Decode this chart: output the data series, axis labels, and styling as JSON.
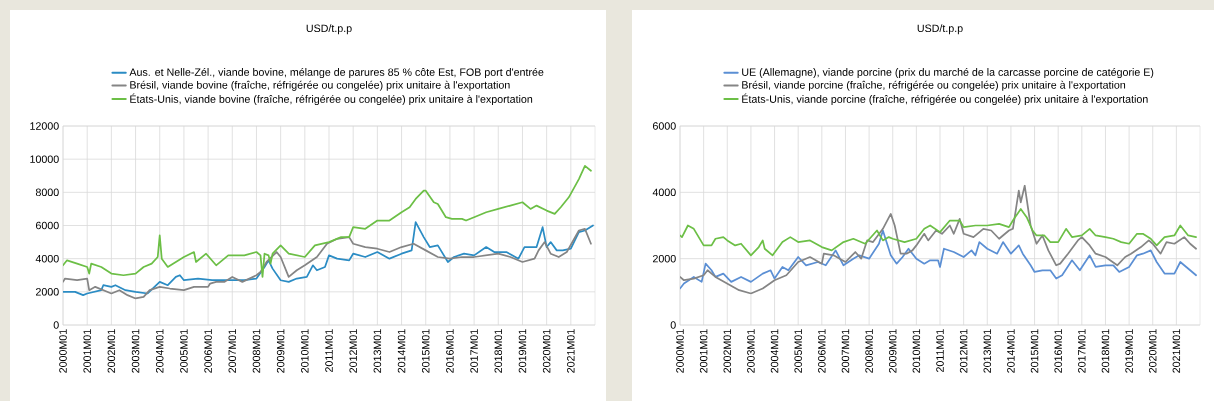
{
  "chart_data": [
    {
      "type": "line",
      "title": "USD/t.p.p",
      "legend": "top",
      "grid": true,
      "xlim": [
        "2000-01",
        "2022-01"
      ],
      "ylim": [
        0,
        12000
      ],
      "xticks": [
        {
          "value": "2000-01",
          "label": "2000M01"
        },
        {
          "value": "2001-01",
          "label": "2001M01"
        },
        {
          "value": "2002-01",
          "label": "2002M01"
        },
        {
          "value": "2003-01",
          "label": "2003M01"
        },
        {
          "value": "2004-01",
          "label": "2004M01"
        },
        {
          "value": "2005-01",
          "label": "2005M01"
        },
        {
          "value": "2006-01",
          "label": "2006M01"
        },
        {
          "value": "2007-01",
          "label": "2007M01"
        },
        {
          "value": "2008-01",
          "label": "2008M01"
        },
        {
          "value": "2009-01",
          "label": "2009M01"
        },
        {
          "value": "2010-01",
          "label": "2010M01"
        },
        {
          "value": "2011-01",
          "label": "2011M01"
        },
        {
          "value": "2012-01",
          "label": "2012M01"
        },
        {
          "value": "2013-01",
          "label": "2013M01"
        },
        {
          "value": "2014-01",
          "label": "2014M01"
        },
        {
          "value": "2015-01",
          "label": "2015M01"
        },
        {
          "value": "2016-01",
          "label": "2016M01"
        },
        {
          "value": "2017-01",
          "label": "2017M01"
        },
        {
          "value": "2018-01",
          "label": "2018M01"
        },
        {
          "value": "2019-01",
          "label": "2019M01"
        },
        {
          "value": "2020-01",
          "label": "2020M01"
        },
        {
          "value": "2021-01",
          "label": "2021M01"
        }
      ],
      "yticks": [
        0,
        2000,
        4000,
        6000,
        8000,
        10000,
        12000
      ],
      "series": [
        {
          "name": "Aus. et Nelle-Zél., viande bovine, mélange de parures 85 % côte Est, FOB port d'entrée",
          "color": "#2b8cc4",
          "x": [
            "2000-01",
            "2000-07",
            "2000-11",
            "2001-01",
            "2001-08",
            "2001-09",
            "2002-01",
            "2002-03",
            "2002-08",
            "2003-01",
            "2003-07",
            "2004-01",
            "2004-05",
            "2004-09",
            "2004-11",
            "2005-01",
            "2005-08",
            "2006-03",
            "2007-01",
            "2007-07",
            "2008-01",
            "2008-05",
            "2008-07",
            "2008-09",
            "2009-01",
            "2009-05",
            "2009-09",
            "2010-02",
            "2010-05",
            "2010-07",
            "2010-11",
            "2011-01",
            "2011-05",
            "2011-11",
            "2012-01",
            "2012-07",
            "2013-01",
            "2013-07",
            "2014-01",
            "2014-06",
            "2014-08",
            "2014-12",
            "2015-03",
            "2015-07",
            "2015-12",
            "2016-03",
            "2016-08",
            "2017-01",
            "2017-07",
            "2017-11",
            "2018-05",
            "2018-11",
            "2019-02",
            "2019-08",
            "2019-11",
            "2020-01",
            "2020-03",
            "2020-06",
            "2020-09",
            "2021-01",
            "2021-05",
            "2021-08",
            "2021-12"
          ],
          "values": [
            2000,
            2000,
            1800,
            1900,
            2100,
            2400,
            2300,
            2400,
            2100,
            2000,
            1900,
            2600,
            2400,
            2900,
            3000,
            2700,
            2800,
            2700,
            2700,
            2700,
            2800,
            3500,
            3900,
            3400,
            2700,
            2600,
            2800,
            2900,
            3600,
            3300,
            3500,
            4200,
            4000,
            3900,
            4300,
            4100,
            4400,
            4000,
            4300,
            4500,
            6200,
            5300,
            4700,
            4800,
            3800,
            4100,
            4300,
            4200,
            4700,
            4400,
            4400,
            4000,
            4700,
            4700,
            5900,
            4700,
            5000,
            4500,
            4500,
            4600,
            5600,
            5700,
            6000
          ]
        },
        {
          "name": "Brésil, viande bovine (fraîche, réfrigérée ou congelée) prix unitaire à l'exportation",
          "color": "#858585",
          "x": [
            "2000-01",
            "2000-02",
            "2000-08",
            "2001-01",
            "2001-02",
            "2001-05",
            "2002-01",
            "2002-05",
            "2002-09",
            "2003-01",
            "2003-05",
            "2003-08",
            "2004-01",
            "2004-06",
            "2005-01",
            "2005-06",
            "2006-01",
            "2006-02",
            "2006-05",
            "2006-09",
            "2007-01",
            "2007-06",
            "2008-01",
            "2008-03",
            "2008-06",
            "2008-11",
            "2009-01",
            "2009-05",
            "2009-09",
            "2010-01",
            "2010-07",
            "2010-12",
            "2011-05",
            "2011-11",
            "2012-01",
            "2012-07",
            "2013-01",
            "2013-07",
            "2014-01",
            "2014-07",
            "2015-01",
            "2015-07",
            "2016-01",
            "2016-07",
            "2017-01",
            "2017-07",
            "2018-01",
            "2018-07",
            "2019-01",
            "2019-07",
            "2019-09",
            "2019-12",
            "2020-03",
            "2020-07",
            "2020-11",
            "2021-05",
            "2021-08",
            "2021-11"
          ],
          "values": [
            2600,
            2800,
            2700,
            2800,
            2100,
            2300,
            1900,
            2100,
            1800,
            1600,
            1700,
            2100,
            2300,
            2200,
            2100,
            2300,
            2300,
            2500,
            2600,
            2600,
            2900,
            2600,
            3000,
            3200,
            3800,
            4400,
            4100,
            2900,
            3300,
            3600,
            4100,
            4900,
            5200,
            5300,
            4900,
            4700,
            4600,
            4400,
            4700,
            4900,
            4500,
            4100,
            4000,
            4100,
            4100,
            4200,
            4300,
            4100,
            3800,
            4000,
            4500,
            5000,
            4300,
            4100,
            4400,
            5700,
            5800,
            4900
          ]
        },
        {
          "name": "États-Unis, viande bovine (fraîche, réfrigérée ou congelée) prix unitaire à l'exportation",
          "color": "#6cbf46",
          "x": [
            "2000-01",
            "2000-03",
            "2000-08",
            "2001-01",
            "2001-02",
            "2001-03",
            "2001-08",
            "2002-01",
            "2002-07",
            "2003-01",
            "2003-05",
            "2003-09",
            "2003-12",
            "2004-01",
            "2004-02",
            "2004-05",
            "2004-09",
            "2005-01",
            "2005-06",
            "2005-07",
            "2005-12",
            "2006-05",
            "2006-11",
            "2007-07",
            "2008-01",
            "2008-03",
            "2008-04",
            "2008-05",
            "2008-07",
            "2008-08",
            "2008-09",
            "2009-01",
            "2009-05",
            "2010-01",
            "2010-06",
            "2011-01",
            "2011-07",
            "2011-11",
            "2012-01",
            "2012-07",
            "2013-01",
            "2013-07",
            "2014-01",
            "2014-05",
            "2014-08",
            "2014-12",
            "2015-01",
            "2015-05",
            "2015-07",
            "2015-11",
            "2016-02",
            "2016-07",
            "2016-09",
            "2017-01",
            "2017-07",
            "2018-01",
            "2018-07",
            "2019-01",
            "2019-05",
            "2019-08",
            "2020-01",
            "2020-05",
            "2020-08",
            "2020-12",
            "2021-05",
            "2021-08",
            "2021-11"
          ],
          "values": [
            3600,
            3900,
            3700,
            3500,
            3100,
            3700,
            3500,
            3100,
            3000,
            3100,
            3500,
            3700,
            4100,
            5400,
            4000,
            3500,
            3800,
            4100,
            4400,
            3800,
            4300,
            3600,
            4200,
            4200,
            4400,
            4200,
            2900,
            4300,
            4200,
            3700,
            4300,
            4800,
            4300,
            4100,
            4800,
            5000,
            5300,
            5300,
            5900,
            5800,
            6300,
            6300,
            6800,
            7100,
            7600,
            8100,
            8100,
            7400,
            7300,
            6500,
            6400,
            6400,
            6300,
            6500,
            6800,
            7000,
            7200,
            7400,
            7000,
            7200,
            6900,
            6700,
            7100,
            7700,
            8800,
            9600,
            9300
          ]
        }
      ]
    },
    {
      "type": "line",
      "title": "USD/t.p.p",
      "legend": "top",
      "grid": true,
      "xlim": [
        "2000-01",
        "2022-01"
      ],
      "ylim": [
        0,
        6000
      ],
      "xticks": [
        {
          "value": "2000-01",
          "label": "2000M01"
        },
        {
          "value": "2001-01",
          "label": "2001M01"
        },
        {
          "value": "2002-01",
          "label": "2002M01"
        },
        {
          "value": "2003-01",
          "label": "2003M01"
        },
        {
          "value": "2004-01",
          "label": "2004M01"
        },
        {
          "value": "2005-01",
          "label": "2005M01"
        },
        {
          "value": "2006-01",
          "label": "2006M01"
        },
        {
          "value": "2007-01",
          "label": "2007M01"
        },
        {
          "value": "2008-01",
          "label": "2008M01"
        },
        {
          "value": "2009-01",
          "label": "2009M01"
        },
        {
          "value": "2010-01",
          "label": "2010M01"
        },
        {
          "value": "2011-01",
          "label": "2011M01"
        },
        {
          "value": "2012-01",
          "label": "2012M01"
        },
        {
          "value": "2013-01",
          "label": "2013M01"
        },
        {
          "value": "2014-01",
          "label": "2014M01"
        },
        {
          "value": "2015-01",
          "label": "2015M01"
        },
        {
          "value": "2016-01",
          "label": "2016M01"
        },
        {
          "value": "2017-01",
          "label": "2017M01"
        },
        {
          "value": "2018-01",
          "label": "2018M01"
        },
        {
          "value": "2019-01",
          "label": "2019M01"
        },
        {
          "value": "2020-01",
          "label": "2020M01"
        },
        {
          "value": "2021-01",
          "label": "2021M01"
        }
      ],
      "yticks": [
        0,
        2000,
        4000,
        6000
      ],
      "series": [
        {
          "name": "UE (Allemagne), viande porcine (prix du marché de la carcasse porcine de catégorie E)",
          "color": "#5b8fd4",
          "x": [
            "2000-01",
            "2000-03",
            "2000-08",
            "2000-12",
            "2001-02",
            "2001-05",
            "2001-07",
            "2001-11",
            "2002-03",
            "2002-08",
            "2003-01",
            "2003-07",
            "2003-11",
            "2004-01",
            "2004-05",
            "2004-08",
            "2005-01",
            "2005-05",
            "2005-11",
            "2006-03",
            "2006-08",
            "2006-12",
            "2007-05",
            "2007-08",
            "2008-01",
            "2008-06",
            "2008-08",
            "2008-12",
            "2009-03",
            "2009-06",
            "2009-09",
            "2010-01",
            "2010-05",
            "2010-08",
            "2010-12",
            "2011-01",
            "2011-03",
            "2011-08",
            "2012-01",
            "2012-05",
            "2012-07",
            "2012-09",
            "2013-01",
            "2013-06",
            "2013-09",
            "2014-01",
            "2014-05",
            "2014-07",
            "2014-11",
            "2015-01",
            "2015-05",
            "2015-09",
            "2015-12",
            "2016-03",
            "2016-08",
            "2016-12",
            "2017-05",
            "2017-08",
            "2018-01",
            "2018-05",
            "2018-08",
            "2019-01",
            "2019-05",
            "2019-08",
            "2019-12",
            "2020-03",
            "2020-07",
            "2020-12",
            "2021-03",
            "2021-08",
            "2021-11"
          ],
          "values": [
            1100,
            1250,
            1450,
            1300,
            1850,
            1650,
            1450,
            1550,
            1300,
            1450,
            1300,
            1550,
            1650,
            1400,
            1750,
            1650,
            2050,
            1800,
            1900,
            1800,
            2250,
            1800,
            2000,
            2100,
            2000,
            2450,
            2850,
            2100,
            1850,
            2050,
            2300,
            2000,
            1850,
            1950,
            1950,
            1750,
            2300,
            2200,
            2050,
            2250,
            2100,
            2500,
            2300,
            2150,
            2500,
            2150,
            2400,
            2150,
            1800,
            1600,
            1650,
            1650,
            1400,
            1500,
            1950,
            1650,
            2100,
            1750,
            1800,
            1800,
            1600,
            1750,
            2100,
            2150,
            2250,
            1900,
            1550,
            1550,
            1900,
            1650,
            1500
          ]
        },
        {
          "name": "Brésil, viande porcine (fraîche, réfrigérée ou congelée) prix unitaire à l'exportation",
          "color": "#858585",
          "x": [
            "2000-01",
            "2000-03",
            "2000-08",
            "2001-01",
            "2001-03",
            "2001-07",
            "2002-01",
            "2002-07",
            "2003-01",
            "2003-07",
            "2004-01",
            "2004-07",
            "2005-01",
            "2005-07",
            "2006-01",
            "2006-02",
            "2006-07",
            "2007-01",
            "2007-06",
            "2007-09",
            "2007-12",
            "2008-03",
            "2008-08",
            "2008-12",
            "2009-02",
            "2009-05",
            "2009-08",
            "2009-11",
            "2010-01",
            "2010-05",
            "2010-07",
            "2010-11",
            "2011-02",
            "2011-06",
            "2011-08",
            "2011-11",
            "2012-01",
            "2012-06",
            "2012-11",
            "2013-03",
            "2013-07",
            "2013-12",
            "2014-02",
            "2014-05",
            "2014-06",
            "2014-08",
            "2014-11",
            "2015-02",
            "2015-05",
            "2015-08",
            "2015-12",
            "2016-02",
            "2016-06",
            "2016-11",
            "2017-01",
            "2017-05",
            "2017-08",
            "2018-01",
            "2018-07",
            "2018-11",
            "2019-02",
            "2019-07",
            "2019-11",
            "2020-01",
            "2020-05",
            "2020-08",
            "2020-12",
            "2021-05",
            "2021-08",
            "2021-11"
          ],
          "values": [
            1450,
            1350,
            1400,
            1500,
            1650,
            1450,
            1250,
            1050,
            950,
            1100,
            1350,
            1500,
            1900,
            2050,
            1850,
            2150,
            2100,
            1900,
            2200,
            2000,
            2550,
            2500,
            2900,
            3350,
            3000,
            2150,
            2150,
            2250,
            2400,
            2750,
            2550,
            2850,
            2750,
            3000,
            2750,
            3200,
            2750,
            2650,
            2900,
            2850,
            2600,
            2850,
            2900,
            4050,
            3700,
            4200,
            3000,
            2450,
            2700,
            2250,
            1800,
            1850,
            2150,
            2550,
            2650,
            2400,
            2150,
            2050,
            1800,
            2050,
            2150,
            2350,
            2550,
            2450,
            2150,
            2500,
            2450,
            2650,
            2450,
            2300
          ]
        },
        {
          "name": "États-Unis, viande porcine (fraîche, réfrigérée ou congelée) prix unitaire à l'exportation",
          "color": "#6cbf46",
          "x": [
            "2000-01",
            "2000-02",
            "2000-05",
            "2000-08",
            "2001-01",
            "2001-05",
            "2001-07",
            "2001-11",
            "2002-01",
            "2002-05",
            "2002-08",
            "2003-01",
            "2003-05",
            "2003-07",
            "2003-08",
            "2003-12",
            "2004-05",
            "2004-09",
            "2005-01",
            "2005-07",
            "2006-01",
            "2006-06",
            "2006-12",
            "2007-05",
            "2007-11",
            "2008-05",
            "2008-08",
            "2008-11",
            "2009-01",
            "2009-07",
            "2010-01",
            "2010-05",
            "2010-08",
            "2011-01",
            "2011-06",
            "2011-11",
            "2012-01",
            "2012-07",
            "2013-01",
            "2013-07",
            "2013-12",
            "2014-02",
            "2014-06",
            "2014-09",
            "2014-12",
            "2015-02",
            "2015-06",
            "2015-09",
            "2016-01",
            "2016-05",
            "2016-08",
            "2017-01",
            "2017-05",
            "2017-08",
            "2018-01",
            "2018-05",
            "2018-09",
            "2019-01",
            "2019-05",
            "2019-08",
            "2019-12",
            "2020-03",
            "2020-07",
            "2020-12",
            "2021-03",
            "2021-07",
            "2021-11"
          ],
          "values": [
            2700,
            2650,
            3000,
            2900,
            2400,
            2400,
            2600,
            2650,
            2550,
            2400,
            2450,
            2100,
            2350,
            2550,
            2300,
            2100,
            2500,
            2650,
            2500,
            2550,
            2350,
            2250,
            2500,
            2600,
            2450,
            2850,
            2550,
            2650,
            2600,
            2500,
            2600,
            2900,
            3000,
            2800,
            3150,
            3150,
            2950,
            3000,
            3000,
            3050,
            2950,
            3150,
            3500,
            3250,
            2850,
            2700,
            2700,
            2500,
            2500,
            2900,
            2650,
            2700,
            2900,
            2700,
            2650,
            2600,
            2500,
            2450,
            2750,
            2750,
            2600,
            2400,
            2650,
            2700,
            3000,
            2700,
            2650
          ]
        }
      ]
    }
  ]
}
